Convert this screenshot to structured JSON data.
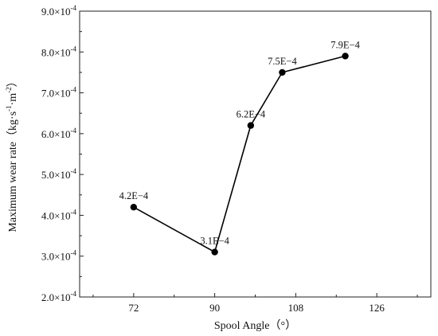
{
  "chart_data": {
    "type": "line",
    "title": "",
    "xlabel": "Spool Angle（°）",
    "ylabel_main": "Maximum wear rate（kg·s",
    "ylabel_sup1": "-1",
    "ylabel_mid": "·m",
    "ylabel_sup2": "-2",
    "ylabel_end": "）",
    "xlim": [
      60,
      138
    ],
    "ylim": [
      0.0002,
      0.0009
    ],
    "x_ticks": [
      72,
      90,
      108,
      126
    ],
    "x_tick_labels": [
      "72",
      "90",
      "108",
      "126"
    ],
    "y_ticks": [
      0.0002,
      0.0003,
      0.0004,
      0.0005,
      0.0006,
      0.0007,
      0.0008,
      0.0009
    ],
    "y_tick_labels": [
      {
        "mant": "2.0×10",
        "exp": "-4"
      },
      {
        "mant": "3.0×10",
        "exp": "-4"
      },
      {
        "mant": "4.0×10",
        "exp": "-4"
      },
      {
        "mant": "5.0×10",
        "exp": "-4"
      },
      {
        "mant": "6.0×10",
        "exp": "-4"
      },
      {
        "mant": "7.0×10",
        "exp": "-4"
      },
      {
        "mant": "8.0×10",
        "exp": "-4"
      },
      {
        "mant": "9.0×10",
        "exp": "-4"
      }
    ],
    "grid": false,
    "legend": "none",
    "series": [
      {
        "x": [
          72,
          90,
          98,
          105,
          119
        ],
        "y": [
          0.00042,
          0.00031,
          0.00062,
          0.00075,
          0.00079
        ],
        "labels": [
          "4.2E−4",
          "3.1E−4",
          "6.2E−4",
          "7.5E−4",
          "7.9E−4"
        ],
        "color": "#000000"
      }
    ]
  }
}
